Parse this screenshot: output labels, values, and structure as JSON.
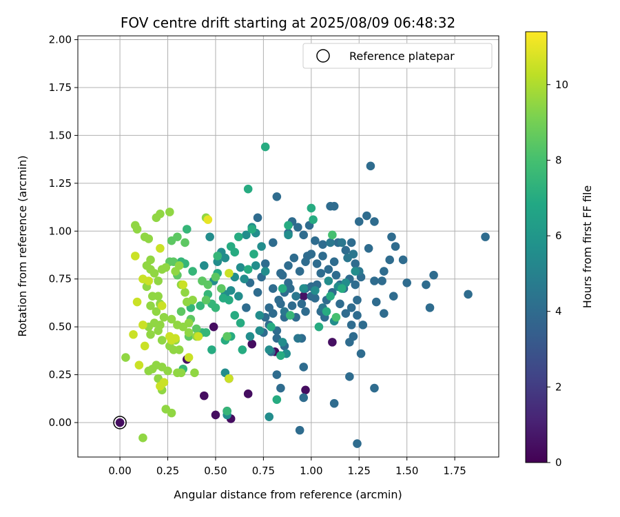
{
  "chart_data": {
    "type": "scatter",
    "title": "FOV centre drift starting at 2025/08/09 06:48:32",
    "xlabel": "Angular distance from reference (arcmin)",
    "ylabel": "Rotation from reference (arcmin)",
    "xlim": [
      -0.22,
      1.98
    ],
    "ylim": [
      -0.18,
      2.02
    ],
    "xticks": [
      0.0,
      0.25,
      0.5,
      0.75,
      1.0,
      1.25,
      1.5,
      1.75
    ],
    "xtick_labels": [
      "0.00",
      "0.25",
      "0.50",
      "0.75",
      "1.00",
      "1.25",
      "1.50",
      "1.75"
    ],
    "yticks": [
      0.0,
      0.25,
      0.5,
      0.75,
      1.0,
      1.25,
      1.5,
      1.75,
      2.0
    ],
    "ytick_labels": [
      "0.00",
      "0.25",
      "0.50",
      "0.75",
      "1.00",
      "1.25",
      "1.50",
      "1.75",
      "2.00"
    ],
    "grid": true,
    "legend": {
      "placement": "top-right",
      "entries": [
        "Reference platepar"
      ]
    },
    "reference_point": [
      0.0,
      0.0
    ],
    "colorbar": {
      "label": "Hours from first FF file",
      "range": [
        0,
        11.4
      ],
      "ticks": [
        0,
        2,
        4,
        6,
        8,
        10
      ],
      "tick_labels": [
        "0",
        "2",
        "4",
        "6",
        "8",
        "10"
      ],
      "colormap": "viridis"
    },
    "points": [
      [
        0.49,
        0.5,
        0.4
      ],
      [
        0.57,
        0.23,
        0.4
      ],
      [
        0.58,
        0.02,
        0.4
      ],
      [
        0.44,
        0.14,
        0.4
      ],
      [
        0.5,
        0.04,
        0.4
      ],
      [
        0.67,
        0.15,
        0.4
      ],
      [
        0.69,
        0.41,
        0.4
      ],
      [
        0.81,
        0.37,
        0.4
      ],
      [
        0.97,
        0.17,
        0.4
      ],
      [
        0.56,
        0.06,
        0.5
      ],
      [
        0.35,
        0.33,
        0.5
      ],
      [
        1.11,
        0.42,
        0.5
      ],
      [
        0.96,
        0.66,
        0.6
      ],
      [
        0.82,
        0.25,
        4.0
      ],
      [
        0.84,
        0.18,
        4.0
      ],
      [
        0.86,
        0.4,
        4.0
      ],
      [
        0.79,
        0.37,
        4.0
      ],
      [
        0.82,
        0.44,
        4.0
      ],
      [
        0.75,
        0.47,
        4.0
      ],
      [
        0.72,
        0.68,
        4.0
      ],
      [
        0.74,
        0.76,
        4.0
      ],
      [
        0.76,
        0.83,
        4.0
      ],
      [
        0.8,
        0.7,
        4.0
      ],
      [
        0.83,
        0.64,
        4.0
      ],
      [
        0.86,
        0.68,
        4.0
      ],
      [
        0.88,
        0.73,
        4.0
      ],
      [
        0.9,
        0.61,
        4.0
      ],
      [
        0.92,
        0.55,
        4.0
      ],
      [
        0.95,
        0.62,
        4.0
      ],
      [
        0.97,
        0.7,
        4.0
      ],
      [
        1.0,
        0.66,
        4.0
      ],
      [
        1.03,
        0.72,
        4.0
      ],
      [
        1.05,
        0.78,
        4.0
      ],
      [
        0.78,
        0.6,
        4.0
      ],
      [
        0.84,
        0.78,
        4.0
      ],
      [
        0.88,
        0.82,
        4.0
      ],
      [
        0.91,
        0.86,
        4.0
      ],
      [
        0.94,
        0.79,
        4.0
      ],
      [
        0.97,
        0.84,
        4.0
      ],
      [
        1.0,
        0.88,
        4.0
      ],
      [
        1.03,
        0.83,
        4.0
      ],
      [
        1.06,
        0.87,
        4.0
      ],
      [
        1.09,
        0.8,
        4.0
      ],
      [
        1.12,
        0.84,
        4.0
      ],
      [
        0.9,
        1.05,
        4.0
      ],
      [
        0.93,
        1.02,
        4.0
      ],
      [
        0.96,
        0.98,
        4.0
      ],
      [
        0.99,
        1.03,
        4.0
      ],
      [
        1.02,
        0.95,
        4.0
      ],
      [
        1.06,
        0.93,
        4.0
      ],
      [
        0.72,
        1.07,
        4.0
      ],
      [
        0.82,
        1.18,
        4.0
      ],
      [
        0.95,
        0.44,
        4.0
      ],
      [
        0.96,
        0.29,
        4.0
      ],
      [
        0.96,
        0.13,
        4.0
      ],
      [
        0.94,
        -0.04,
        4.0
      ],
      [
        1.12,
        0.1,
        4.0
      ],
      [
        1.24,
        -0.11,
        4.0
      ],
      [
        1.33,
        0.18,
        4.0
      ],
      [
        1.26,
        0.36,
        4.0
      ],
      [
        1.2,
        0.24,
        4.0
      ],
      [
        1.31,
        1.34,
        4.0
      ],
      [
        1.25,
        1.05,
        4.0
      ],
      [
        1.29,
        1.08,
        4.0
      ],
      [
        1.33,
        1.05,
        4.0
      ],
      [
        1.42,
        0.97,
        4.0
      ],
      [
        1.44,
        0.92,
        4.0
      ],
      [
        1.48,
        0.85,
        4.0
      ],
      [
        1.41,
        0.85,
        4.0
      ],
      [
        1.38,
        0.79,
        4.0
      ],
      [
        1.33,
        0.74,
        4.0
      ],
      [
        1.37,
        0.74,
        4.0
      ],
      [
        1.3,
        0.91,
        4.0
      ],
      [
        1.23,
        0.83,
        4.0
      ],
      [
        1.2,
        0.75,
        4.0
      ],
      [
        1.17,
        0.7,
        4.0
      ],
      [
        1.15,
        0.72,
        4.0
      ],
      [
        1.23,
        0.72,
        4.0
      ],
      [
        1.26,
        0.76,
        4.0
      ],
      [
        1.24,
        0.64,
        4.0
      ],
      [
        1.21,
        0.6,
        4.0
      ],
      [
        1.18,
        0.57,
        4.0
      ],
      [
        1.15,
        0.62,
        4.0
      ],
      [
        1.11,
        0.68,
        4.0
      ],
      [
        1.08,
        0.64,
        4.0
      ],
      [
        1.05,
        0.58,
        4.0
      ],
      [
        1.07,
        0.55,
        4.0
      ],
      [
        1.21,
        0.51,
        4.0
      ],
      [
        1.24,
        0.56,
        4.0
      ],
      [
        1.27,
        0.51,
        4.0
      ],
      [
        1.34,
        0.63,
        4.0
      ],
      [
        1.38,
        0.57,
        4.0
      ],
      [
        1.43,
        0.66,
        4.0
      ],
      [
        1.5,
        0.73,
        4.0
      ],
      [
        1.6,
        0.72,
        4.0
      ],
      [
        1.64,
        0.77,
        4.0
      ],
      [
        1.62,
        0.6,
        4.0
      ],
      [
        1.82,
        0.67,
        4.0
      ],
      [
        1.91,
        0.97,
        4.0
      ],
      [
        1.22,
        0.45,
        4.0
      ],
      [
        1.2,
        0.42,
        4.0
      ],
      [
        1.14,
        0.94,
        4.0
      ],
      [
        1.1,
        1.13,
        4.0
      ],
      [
        1.12,
        1.13,
        4.0
      ],
      [
        1.18,
        0.9,
        4.0
      ],
      [
        1.21,
        0.94,
        4.0
      ],
      [
        1.13,
        0.77,
        4.0
      ],
      [
        0.98,
        0.87,
        4.0
      ],
      [
        0.88,
        0.99,
        4.0
      ],
      [
        0.8,
        0.94,
        4.0
      ],
      [
        0.86,
        0.55,
        4.0
      ],
      [
        0.82,
        0.48,
        4.0
      ],
      [
        0.84,
        0.62,
        4.0
      ],
      [
        0.76,
        0.55,
        4.0
      ],
      [
        0.68,
        0.73,
        4.0
      ],
      [
        0.66,
        0.6,
        4.0
      ],
      [
        0.78,
        0.51,
        4.0
      ],
      [
        0.8,
        0.57,
        4.0
      ],
      [
        0.89,
        0.7,
        4.0
      ],
      [
        0.85,
        0.77,
        4.0
      ],
      [
        0.97,
        0.58,
        4.0
      ],
      [
        1.0,
        0.71,
        4.0
      ],
      [
        1.02,
        0.65,
        4.0
      ],
      [
        1.16,
        0.94,
        4.5
      ],
      [
        1.19,
        0.86,
        4.5
      ],
      [
        1.22,
        0.88,
        4.5
      ],
      [
        1.25,
        0.79,
        4.5
      ],
      [
        1.1,
        0.94,
        4.5
      ],
      [
        1.06,
        0.6,
        4.5
      ],
      [
        0.92,
        0.66,
        4.5
      ],
      [
        0.86,
        0.58,
        4.5
      ],
      [
        0.93,
        0.44,
        4.5
      ],
      [
        0.71,
        0.99,
        5.5
      ],
      [
        0.74,
        0.92,
        5.5
      ],
      [
        0.69,
        1.02,
        5.5
      ],
      [
        0.66,
        0.98,
        5.5
      ],
      [
        0.65,
        0.75,
        5.5
      ],
      [
        0.62,
        0.66,
        5.5
      ],
      [
        0.58,
        0.69,
        5.5
      ],
      [
        0.6,
        0.76,
        5.5
      ],
      [
        0.63,
        0.81,
        5.5
      ],
      [
        0.71,
        0.82,
        5.5
      ],
      [
        0.55,
        0.67,
        5.5
      ],
      [
        0.51,
        0.84,
        5.5
      ],
      [
        0.53,
        0.89,
        5.5
      ],
      [
        0.55,
        0.86,
        5.5
      ],
      [
        0.49,
        0.74,
        5.5
      ],
      [
        0.47,
        0.97,
        5.5
      ],
      [
        0.44,
        0.82,
        5.5
      ],
      [
        0.68,
        0.45,
        5.5
      ],
      [
        0.73,
        0.48,
        5.5
      ],
      [
        0.78,
        0.38,
        5.5
      ],
      [
        0.85,
        0.42,
        5.5
      ],
      [
        0.87,
        0.36,
        5.5
      ],
      [
        0.55,
        0.26,
        5.5
      ],
      [
        0.56,
        0.04,
        5.5
      ],
      [
        0.78,
        0.03,
        5.5
      ],
      [
        0.88,
        0.98,
        5.5
      ],
      [
        1.12,
        0.53,
        5.5
      ],
      [
        1.09,
        0.74,
        5.5
      ],
      [
        1.02,
        0.69,
        5.5
      ],
      [
        1.18,
        0.73,
        5.5
      ],
      [
        1.23,
        0.79,
        5.5
      ],
      [
        1.14,
        0.71,
        5.5
      ],
      [
        0.96,
        0.7,
        5.5
      ],
      [
        0.76,
        0.79,
        5.5
      ],
      [
        0.73,
        0.56,
        5.5
      ],
      [
        0.64,
        0.38,
        7.0
      ],
      [
        0.63,
        0.52,
        7.0
      ],
      [
        0.6,
        0.56,
        7.0
      ],
      [
        0.58,
        0.45,
        7.0
      ],
      [
        0.55,
        0.43,
        7.0
      ],
      [
        0.48,
        0.38,
        7.0
      ],
      [
        0.51,
        0.78,
        7.0
      ],
      [
        0.54,
        0.65,
        7.0
      ],
      [
        0.57,
        0.64,
        7.0
      ],
      [
        0.58,
        0.92,
        7.0
      ],
      [
        0.6,
        0.89,
        7.0
      ],
      [
        0.62,
        0.97,
        7.0
      ],
      [
        0.67,
        0.8,
        7.0
      ],
      [
        0.69,
        1.01,
        7.0
      ],
      [
        0.7,
        0.88,
        7.0
      ],
      [
        0.76,
        1.44,
        7.0
      ],
      [
        0.67,
        1.22,
        7.0
      ],
      [
        0.82,
        0.12,
        7.0
      ],
      [
        0.79,
        0.5,
        7.0
      ],
      [
        0.84,
        0.35,
        7.0
      ],
      [
        0.85,
        0.7,
        7.0
      ],
      [
        0.88,
        1.03,
        7.0
      ],
      [
        1.0,
        1.12,
        7.0
      ],
      [
        1.01,
        1.06,
        7.0
      ],
      [
        1.08,
        0.58,
        7.0
      ],
      [
        1.1,
        0.66,
        7.0
      ],
      [
        1.04,
        0.5,
        7.0
      ],
      [
        1.16,
        0.7,
        7.0
      ],
      [
        0.32,
        0.84,
        7.5
      ],
      [
        0.34,
        0.83,
        7.5
      ],
      [
        0.33,
        0.28,
        7.5
      ],
      [
        0.35,
        1.01,
        7.5
      ],
      [
        0.37,
        0.6,
        7.5
      ],
      [
        0.43,
        0.47,
        7.5
      ],
      [
        0.45,
        0.47,
        7.5
      ],
      [
        0.46,
        0.67,
        7.5
      ],
      [
        0.48,
        0.62,
        7.5
      ],
      [
        0.5,
        0.6,
        7.5
      ],
      [
        0.51,
        0.87,
        7.5
      ],
      [
        0.43,
        0.74,
        7.5
      ],
      [
        0.38,
        0.79,
        7.5
      ],
      [
        0.42,
        0.61,
        7.5
      ],
      [
        0.56,
        0.06,
        7.5
      ],
      [
        0.89,
        0.56,
        7.5
      ],
      [
        1.11,
        0.98,
        8.0
      ],
      [
        1.13,
        0.55,
        8.0
      ],
      [
        0.26,
        0.84,
        8.5
      ],
      [
        0.28,
        0.84,
        8.5
      ],
      [
        0.3,
        0.77,
        8.5
      ],
      [
        0.27,
        0.95,
        8.5
      ],
      [
        0.32,
        0.58,
        8.5
      ],
      [
        0.36,
        0.45,
        8.5
      ],
      [
        0.34,
        0.94,
        8.5
      ],
      [
        0.3,
        0.97,
        8.5
      ],
      [
        0.37,
        0.54,
        8.5
      ],
      [
        0.4,
        0.49,
        8.5
      ],
      [
        0.43,
        0.74,
        8.5
      ],
      [
        0.45,
        0.64,
        8.5
      ],
      [
        0.46,
        0.72,
        8.5
      ],
      [
        0.5,
        0.76,
        8.5
      ],
      [
        0.53,
        0.7,
        8.5
      ],
      [
        0.56,
        0.45,
        8.5
      ],
      [
        0.45,
        1.07,
        9.5
      ],
      [
        0.3,
        0.26,
        9.5
      ],
      [
        0.24,
        0.07,
        9.5
      ],
      [
        0.27,
        0.05,
        9.5
      ],
      [
        0.22,
        0.17,
        9.5
      ],
      [
        0.2,
        0.23,
        9.5
      ],
      [
        0.22,
        0.29,
        9.5
      ],
      [
        0.25,
        0.27,
        9.5
      ],
      [
        0.19,
        0.3,
        9.5
      ],
      [
        0.17,
        0.28,
        9.5
      ],
      [
        0.15,
        0.27,
        9.5
      ],
      [
        0.16,
        0.46,
        9.5
      ],
      [
        0.15,
        0.5,
        9.5
      ],
      [
        0.18,
        0.52,
        9.5
      ],
      [
        0.21,
        0.51,
        9.5
      ],
      [
        0.23,
        0.55,
        9.5
      ],
      [
        0.19,
        0.58,
        9.5
      ],
      [
        0.21,
        0.62,
        9.5
      ],
      [
        0.16,
        0.61,
        9.5
      ],
      [
        0.17,
        0.66,
        9.5
      ],
      [
        0.2,
        0.66,
        9.5
      ],
      [
        0.14,
        0.71,
        9.5
      ],
      [
        0.16,
        0.8,
        9.5
      ],
      [
        0.18,
        0.78,
        9.5
      ],
      [
        0.2,
        0.74,
        9.5
      ],
      [
        0.22,
        0.8,
        9.5
      ],
      [
        0.24,
        0.81,
        9.5
      ],
      [
        0.14,
        0.82,
        9.5
      ],
      [
        0.16,
        0.85,
        9.5
      ],
      [
        0.13,
        0.97,
        9.5
      ],
      [
        0.15,
        0.96,
        9.5
      ],
      [
        0.08,
        1.03,
        9.5
      ],
      [
        0.09,
        1.01,
        9.5
      ],
      [
        0.19,
        1.07,
        9.5
      ],
      [
        0.21,
        1.09,
        9.5
      ],
      [
        0.26,
        1.1,
        9.5
      ],
      [
        0.29,
        0.79,
        9.5
      ],
      [
        0.31,
        0.82,
        9.5
      ],
      [
        0.32,
        0.72,
        9.5
      ],
      [
        0.34,
        0.68,
        9.5
      ],
      [
        0.35,
        0.63,
        9.5
      ],
      [
        0.38,
        0.64,
        9.5
      ],
      [
        0.36,
        0.52,
        9.5
      ],
      [
        0.33,
        0.5,
        9.5
      ],
      [
        0.3,
        0.51,
        9.5
      ],
      [
        0.27,
        0.54,
        9.5
      ],
      [
        0.29,
        0.43,
        9.5
      ],
      [
        0.26,
        0.4,
        9.5
      ],
      [
        0.28,
        0.38,
        9.5
      ],
      [
        0.31,
        0.38,
        9.5
      ],
      [
        0.36,
        0.47,
        9.5
      ],
      [
        0.4,
        0.45,
        9.5
      ],
      [
        0.39,
        0.26,
        9.5
      ],
      [
        0.22,
        0.43,
        9.5
      ],
      [
        0.2,
        0.48,
        9.5
      ],
      [
        0.32,
        0.26,
        9.5
      ],
      [
        0.12,
        -0.08,
        9.5
      ],
      [
        0.03,
        0.34,
        9.5
      ],
      [
        0.08,
        0.87,
        10.5
      ],
      [
        0.1,
        0.3,
        10.5
      ],
      [
        0.13,
        0.4,
        10.5
      ],
      [
        0.12,
        0.51,
        10.5
      ],
      [
        0.07,
        0.46,
        10.5
      ],
      [
        0.12,
        0.75,
        10.5
      ],
      [
        0.15,
        0.74,
        10.5
      ],
      [
        0.09,
        0.63,
        10.5
      ],
      [
        0.21,
        0.91,
        10.5
      ],
      [
        0.22,
        0.61,
        10.5
      ],
      [
        0.26,
        0.45,
        10.5
      ],
      [
        0.27,
        0.43,
        10.5
      ],
      [
        0.29,
        0.44,
        10.5
      ],
      [
        0.33,
        0.72,
        10.5
      ],
      [
        0.36,
        0.34,
        10.5
      ],
      [
        0.41,
        0.45,
        10.5
      ],
      [
        0.57,
        0.78,
        10.5
      ],
      [
        0.57,
        0.23,
        10.5
      ],
      [
        0.46,
        1.06,
        11.0
      ],
      [
        0.23,
        0.21,
        10.5
      ],
      [
        0.21,
        0.19,
        10.5
      ]
    ]
  }
}
